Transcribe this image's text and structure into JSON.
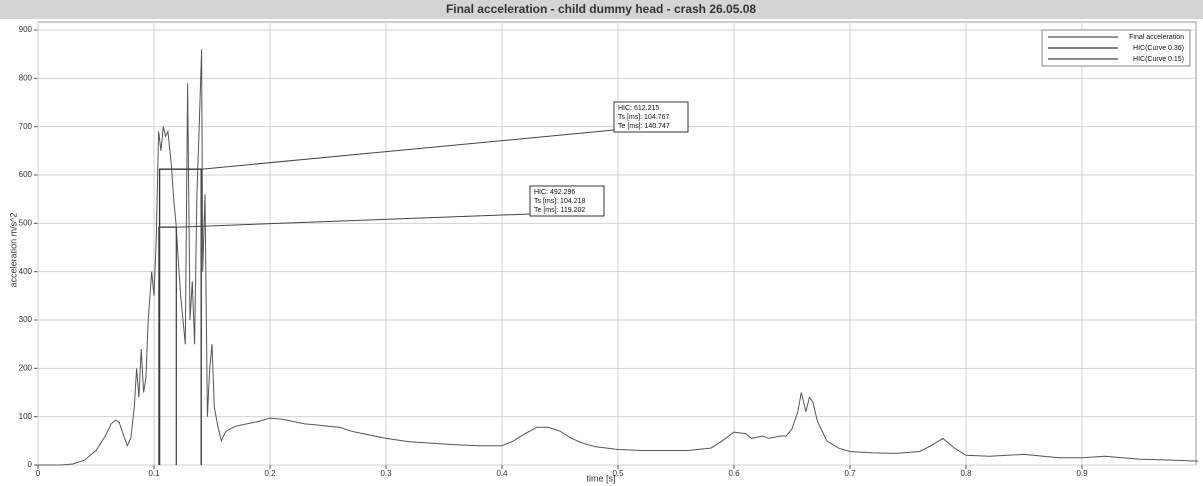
{
  "chart_data": {
    "type": "line",
    "title": "Final acceleration - child dummy head - crash 26.05.08",
    "x_label": "time [s]",
    "y_label": "acceleration m/s^2",
    "xlim": [
      0,
      1
    ],
    "ylim": [
      0,
      900
    ],
    "xticks": [
      0,
      0.1,
      0.2,
      0.3,
      0.4,
      0.5,
      0.6,
      0.7,
      0.8,
      0.9
    ],
    "yticks": [
      0,
      100,
      200,
      300,
      400,
      500,
      600,
      700,
      800,
      900
    ],
    "grid": true,
    "legend": "top-right",
    "series": [
      {
        "name": "Final acceleration",
        "color": "#555555",
        "x": [
          0,
          0.02,
          0.03,
          0.04,
          0.05,
          0.058,
          0.063,
          0.067,
          0.07,
          0.074,
          0.077,
          0.08,
          0.083,
          0.085,
          0.087,
          0.089,
          0.091,
          0.093,
          0.095,
          0.098,
          0.1,
          0.102,
          0.104,
          0.106,
          0.108,
          0.11,
          0.112,
          0.115,
          0.117,
          0.119,
          0.121,
          0.123,
          0.125,
          0.127,
          0.129,
          0.131,
          0.133,
          0.135,
          0.137,
          0.139,
          0.141,
          0.142,
          0.144,
          0.146,
          0.148,
          0.15,
          0.152,
          0.155,
          0.158,
          0.162,
          0.17,
          0.18,
          0.19,
          0.2,
          0.21,
          0.22,
          0.23,
          0.24,
          0.25,
          0.26,
          0.27,
          0.28,
          0.3,
          0.32,
          0.34,
          0.36,
          0.38,
          0.4,
          0.41,
          0.42,
          0.43,
          0.44,
          0.45,
          0.46,
          0.47,
          0.48,
          0.5,
          0.52,
          0.54,
          0.56,
          0.58,
          0.59,
          0.6,
          0.61,
          0.615,
          0.625,
          0.63,
          0.64,
          0.645,
          0.65,
          0.655,
          0.658,
          0.662,
          0.665,
          0.668,
          0.672,
          0.68,
          0.69,
          0.7,
          0.72,
          0.74,
          0.76,
          0.77,
          0.78,
          0.79,
          0.8,
          0.82,
          0.85,
          0.88,
          0.9,
          0.92,
          0.95,
          0.98,
          1.0
        ],
        "values": [
          0,
          0,
          2,
          10,
          30,
          60,
          85,
          93,
          88,
          60,
          40,
          55,
          120,
          200,
          140,
          240,
          150,
          180,
          300,
          400,
          350,
          470,
          690,
          650,
          700,
          680,
          690,
          620,
          550,
          500,
          420,
          350,
          300,
          250,
          790,
          300,
          380,
          250,
          560,
          700,
          860,
          400,
          560,
          100,
          200,
          250,
          120,
          80,
          50,
          70,
          80,
          85,
          90,
          97,
          95,
          90,
          85,
          83,
          80,
          78,
          70,
          65,
          55,
          48,
          45,
          42,
          40,
          40,
          50,
          65,
          78,
          78,
          70,
          55,
          45,
          38,
          32,
          30,
          30,
          30,
          35,
          50,
          68,
          65,
          55,
          60,
          55,
          60,
          60,
          75,
          110,
          150,
          110,
          140,
          130,
          90,
          50,
          35,
          28,
          25,
          24,
          28,
          40,
          55,
          35,
          20,
          18,
          22,
          15,
          15,
          18,
          12,
          10,
          8
        ]
      },
      {
        "name": "HIC(Curve 0.36)",
        "color": "#333333",
        "x": [
          0.1048,
          0.1048,
          0.1407,
          0.1407
        ],
        "values": [
          0,
          612,
          612,
          0
        ]
      },
      {
        "name": "HIC(Curve 0.15)",
        "color": "#444444",
        "x": [
          0.1042,
          0.1042,
          0.1192,
          0.1192
        ],
        "values": [
          0,
          492,
          492,
          0
        ]
      }
    ],
    "annotations": [
      {
        "series": 1,
        "lines": [
          "HIC: 612.215",
          "Ts [ms]: 104.767",
          "Te [ms]: 140.747"
        ]
      },
      {
        "series": 2,
        "lines": [
          "HIC: 492.296",
          "Ts [ms]: 104.218",
          "Te [ms]: 119.202"
        ]
      }
    ]
  }
}
